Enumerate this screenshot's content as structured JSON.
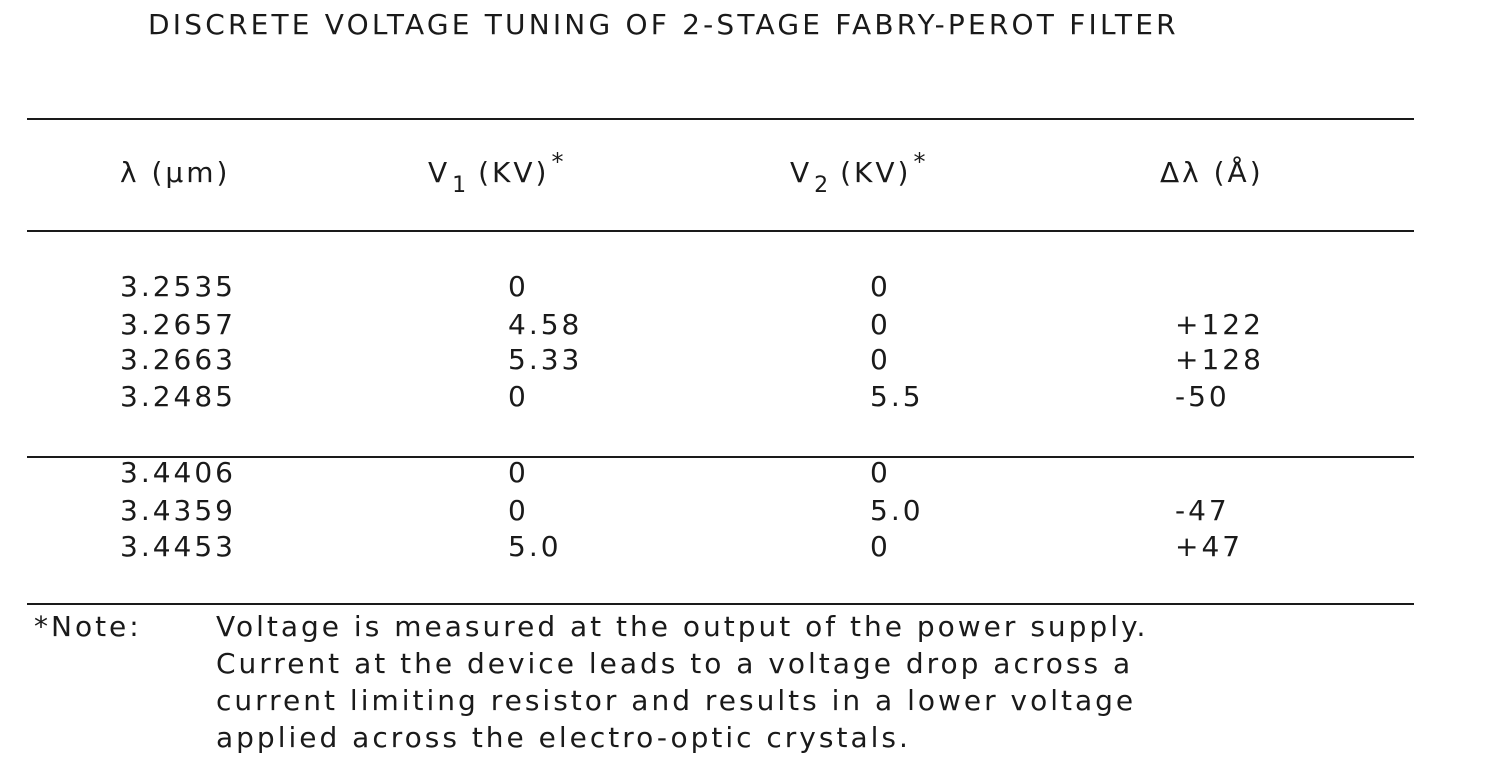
{
  "title": "DISCRETE VOLTAGE TUNING OF 2-STAGE FABRY-PEROT FILTER",
  "headers": {
    "lambda": "λ (μm)",
    "v1_main": "V",
    "v1_sub": "1",
    "v1_unit": "(KV)",
    "v2_main": "V",
    "v2_sub": "2",
    "v2_unit": "(KV)",
    "star": "*",
    "dlambda": "Δλ (Å)"
  },
  "group1": [
    {
      "lambda": "3.2535",
      "v1": "0",
      "v2": "0",
      "dl": ""
    },
    {
      "lambda": "3.2657",
      "v1": "4.58",
      "v2": "0",
      "dl": "+122"
    },
    {
      "lambda": "3.2663",
      "v1": "5.33",
      "v2": "0",
      "dl": "+128"
    },
    {
      "lambda": "3.2485",
      "v1": "0",
      "v2": "5.5",
      "dl": "-50"
    }
  ],
  "group2": [
    {
      "lambda": "3.4406",
      "v1": "0",
      "v2": "0",
      "dl": ""
    },
    {
      "lambda": "3.4359",
      "v1": "0",
      "v2": "5.0",
      "dl": "-47"
    },
    {
      "lambda": "3.4453",
      "v1": "5.0",
      "v2": "0",
      "dl": "+47"
    }
  ],
  "note": {
    "label": "*Note:",
    "lines": [
      "Voltage is measured at the output of the power supply.",
      "Current at the device leads to a voltage drop across a",
      "current limiting resistor and results in a lower voltage",
      "applied across the electro-optic crystals."
    ]
  }
}
